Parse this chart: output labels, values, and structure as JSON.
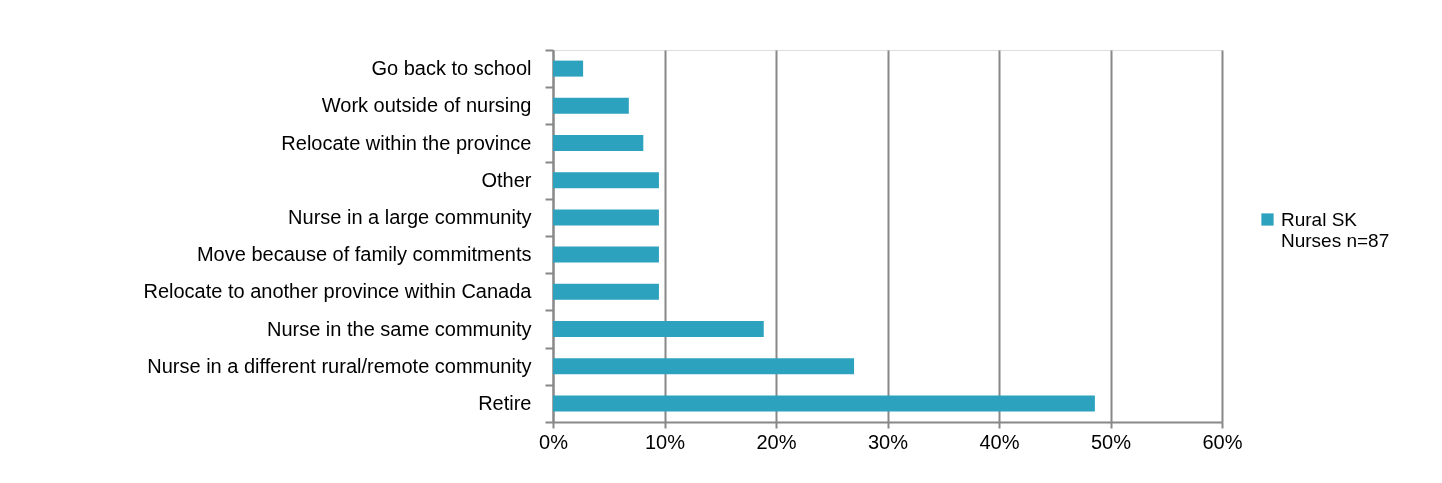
{
  "chart_data": {
    "type": "bar",
    "orientation": "horizontal",
    "categories": [
      "Go back to school",
      "Work outside of nursing",
      "Relocate within the province",
      "Other",
      "Nurse in a large community",
      "Move because of family commitments",
      "Relocate to another province within Canada",
      "Nurse in the same community",
      "Nurse in a different rural/remote community",
      "Retire"
    ],
    "series": [
      {
        "name": "Rural SK Nurses n=87",
        "color": "#2ca2bf",
        "values": [
          2.7,
          6.8,
          8.1,
          9.5,
          9.5,
          9.5,
          9.5,
          18.9,
          27.0,
          48.6
        ]
      }
    ],
    "xlim": [
      0,
      60
    ],
    "xticks": [
      {
        "value": 0,
        "label": "0%"
      },
      {
        "value": 10,
        "label": "10%"
      },
      {
        "value": 20,
        "label": "20%"
      },
      {
        "value": 30,
        "label": "30%"
      },
      {
        "value": 40,
        "label": "40%"
      },
      {
        "value": 50,
        "label": "50%"
      },
      {
        "value": 60,
        "label": "60%"
      }
    ],
    "grid": "x",
    "legend": "right"
  }
}
